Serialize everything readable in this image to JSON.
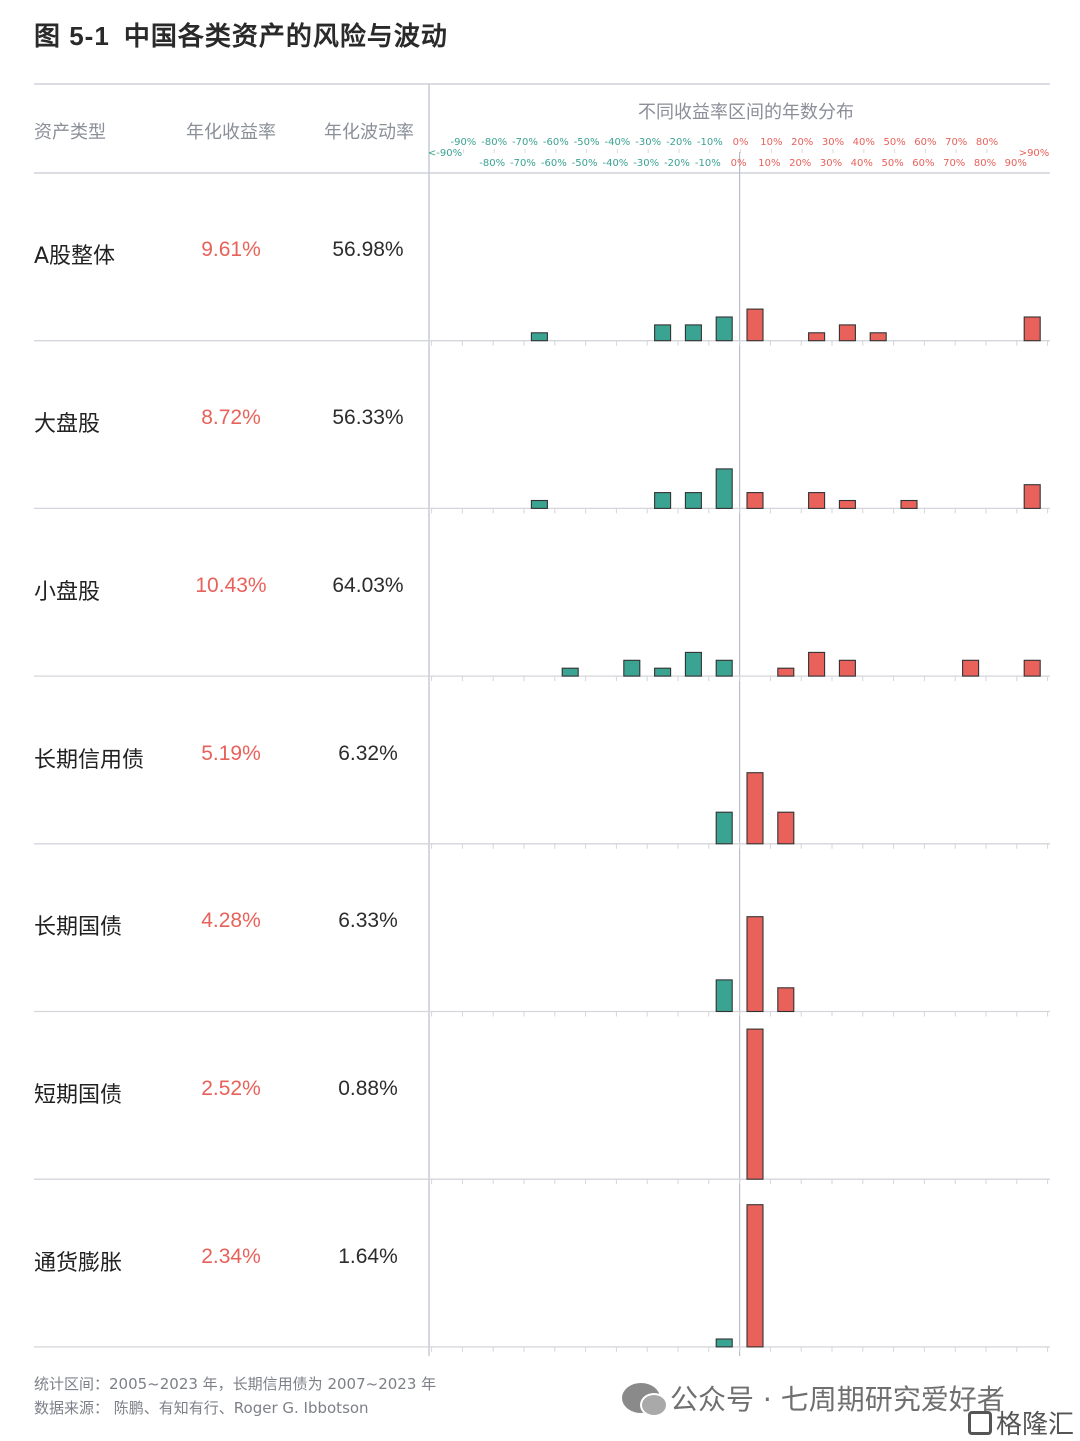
{
  "title": {
    "prefix": "图 5-1",
    "text": "中国各类资产的风险与波动"
  },
  "headers": {
    "asset_type": "资产类型",
    "annual_return": "年化收益率",
    "annual_volatility": "年化波动率",
    "distribution": "不同收益率区间的年数分布"
  },
  "colors": {
    "negative": "#3aa391",
    "positive": "#e8615a",
    "return_text": "#e8615a"
  },
  "chart_data": {
    "type": "bar",
    "title": "不同收益率区间的年数分布",
    "bins_top_labels": [
      "-90%",
      "-80%",
      "-70%",
      "-60%",
      "-50%",
      "-40%",
      "-30%",
      "-20%",
      "-10%",
      "0%",
      "10%",
      "20%",
      "30%",
      "40%",
      "50%",
      "60%",
      "70%",
      "80%"
    ],
    "bins_bottom_labels": [
      "-80%",
      "-70%",
      "-60%",
      "-50%",
      "-40%",
      "-30%",
      "-20%",
      "-10%",
      "0%",
      "10%",
      "20%",
      "30%",
      "40%",
      "50%",
      "60%",
      "70%",
      "80%",
      "90%"
    ],
    "left_open_label": "<-90%",
    "right_open_label": ">90%",
    "categories": [
      "<-90%",
      "-90%~-80%",
      "-80%~-70%",
      "-70%~-60%",
      "-60%~-50%",
      "-50%~-40%",
      "-40%~-30%",
      "-30%~-20%",
      "-20%~-10%",
      "-10%~0%",
      "0%~10%",
      "10%~20%",
      "20%~30%",
      "30%~40%",
      "40%~50%",
      "50%~60%",
      "60%~70%",
      "70%~80%",
      "80%~90%",
      ">90%"
    ],
    "negative_bins": 10,
    "series": [
      {
        "name": "A股整体",
        "return": "9.61%",
        "volatility": "56.98%",
        "values": [
          0,
          0,
          0,
          1,
          0,
          0,
          0,
          2,
          2,
          3,
          4,
          0,
          1,
          2,
          1,
          0,
          0,
          0,
          0,
          3
        ]
      },
      {
        "name": "大盘股",
        "return": "8.72%",
        "volatility": "56.33%",
        "values": [
          0,
          0,
          0,
          1,
          0,
          0,
          0,
          2,
          2,
          5,
          2,
          0,
          2,
          1,
          0,
          1,
          0,
          0,
          0,
          3
        ]
      },
      {
        "name": "小盘股",
        "return": "10.43%",
        "volatility": "64.03%",
        "values": [
          0,
          0,
          0,
          0,
          1,
          0,
          2,
          1,
          3,
          2,
          0,
          1,
          3,
          2,
          0,
          0,
          0,
          2,
          0,
          2
        ]
      },
      {
        "name": "长期信用债",
        "return": "5.19%",
        "volatility": "6.32%",
        "values": [
          0,
          0,
          0,
          0,
          0,
          0,
          0,
          0,
          0,
          4,
          9,
          4,
          0,
          0,
          0,
          0,
          0,
          0,
          0,
          0
        ]
      },
      {
        "name": "长期国债",
        "return": "4.28%",
        "volatility": "6.33%",
        "values": [
          0,
          0,
          0,
          0,
          0,
          0,
          0,
          0,
          0,
          4,
          12,
          3,
          0,
          0,
          0,
          0,
          0,
          0,
          0,
          0
        ]
      },
      {
        "name": "短期国债",
        "return": "2.52%",
        "volatility": "0.88%",
        "values": [
          0,
          0,
          0,
          0,
          0,
          0,
          0,
          0,
          0,
          0,
          19,
          0,
          0,
          0,
          0,
          0,
          0,
          0,
          0,
          0
        ]
      },
      {
        "name": "通货膨胀",
        "return": "2.34%",
        "volatility": "1.64%",
        "values": [
          0,
          0,
          0,
          0,
          0,
          0,
          0,
          0,
          0,
          1,
          18,
          0,
          0,
          0,
          0,
          0,
          0,
          0,
          0,
          0
        ]
      }
    ]
  },
  "footer": {
    "period": "统计区间：2005~2023 年，长期信用债为 2007~2023 年",
    "source": "数据来源：  陈鹏、有知有行、Roger G. Ibbotson"
  },
  "brand": {
    "text": "公众号 · 七周期研究爱好者",
    "logo_text": "格隆汇"
  }
}
